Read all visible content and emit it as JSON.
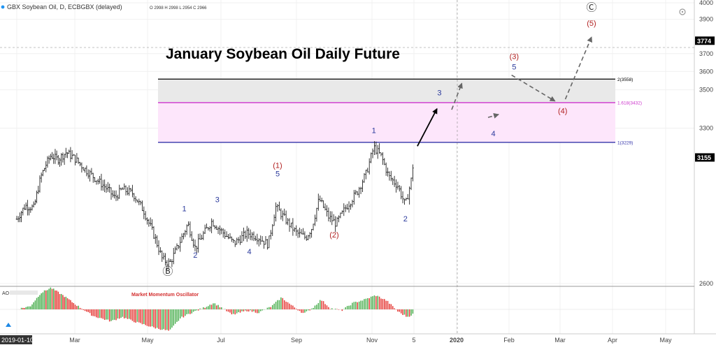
{
  "header": {
    "symbol": "GBX Soybean Oil, D, ECBGBX (delayed)",
    "ohlc": "O 2998 H 2998 L 2954 C 2966"
  },
  "colors": {
    "bar": "#222222",
    "fib_top": "#000000",
    "fib_mid": "#cc33cc",
    "fib_low": "#3333aa",
    "wave_blue": "#2b3a9c",
    "wave_red": "#b22222",
    "ao_up": "#4caf50",
    "ao_down": "#e53935",
    "current_price_bg": "#000000"
  },
  "chart_data": {
    "type": "ohlc",
    "title": "January Soybean Oil Daily Future",
    "x_ticks": [
      {
        "label": "2019-01-10",
        "month": 0.3
      },
      {
        "label": "Mar",
        "month": 2
      },
      {
        "label": "May",
        "month": 4
      },
      {
        "label": "Jul",
        "month": 6
      },
      {
        "label": "Sep",
        "month": 8
      },
      {
        "label": "Nov",
        "month": 10
      },
      {
        "label": "5",
        "month": 11.13
      },
      {
        "label": "2020",
        "month": 12
      },
      {
        "label": "Feb",
        "month": 13
      },
      {
        "label": "Mar",
        "month": 14
      },
      {
        "label": "Apr",
        "month": 15
      },
      {
        "label": "May",
        "month": 16
      }
    ],
    "y_ticks": [
      2600,
      3300,
      3500,
      3600,
      3700,
      3900,
      4000
    ],
    "y_range": [
      2540,
      4030
    ],
    "log_scale": true,
    "price_labels": [
      {
        "label": "3774",
        "value": 3774
      },
      {
        "label": "3155",
        "value": 3155
      }
    ],
    "fib_levels": [
      {
        "ratio": "2",
        "value": 3558,
        "label": "2(3558)"
      },
      {
        "ratio": "1.618",
        "value": 3432,
        "label": "1.618(3432)"
      },
      {
        "ratio": "1",
        "value": 3229,
        "label": "1(3229)"
      }
    ],
    "price_path": [
      {
        "month": 0.3,
        "price": 2870
      },
      {
        "month": 0.55,
        "price": 2930
      },
      {
        "month": 0.8,
        "price": 2920
      },
      {
        "month": 1.0,
        "price": 3060
      },
      {
        "month": 1.15,
        "price": 3120
      },
      {
        "month": 1.3,
        "price": 3165
      },
      {
        "month": 1.5,
        "price": 3145
      },
      {
        "month": 1.75,
        "price": 3180
      },
      {
        "month": 2.0,
        "price": 3150
      },
      {
        "month": 2.3,
        "price": 3095
      },
      {
        "month": 2.6,
        "price": 3050
      },
      {
        "month": 2.9,
        "price": 3005
      },
      {
        "month": 3.1,
        "price": 2965
      },
      {
        "month": 3.3,
        "price": 3005
      },
      {
        "month": 3.6,
        "price": 2985
      },
      {
        "month": 3.9,
        "price": 2905
      },
      {
        "month": 4.2,
        "price": 2790
      },
      {
        "month": 4.4,
        "price": 2700
      },
      {
        "month": 4.6,
        "price": 2680
      },
      {
        "month": 4.85,
        "price": 2760
      },
      {
        "month": 5.1,
        "price": 2850
      },
      {
        "month": 5.3,
        "price": 2745
      },
      {
        "month": 5.5,
        "price": 2800
      },
      {
        "month": 5.75,
        "price": 2860
      },
      {
        "month": 6.0,
        "price": 2820
      },
      {
        "month": 6.35,
        "price": 2765
      },
      {
        "month": 6.7,
        "price": 2810
      },
      {
        "month": 7.0,
        "price": 2790
      },
      {
        "month": 7.25,
        "price": 2760
      },
      {
        "month": 7.45,
        "price": 2925
      },
      {
        "month": 7.7,
        "price": 2870
      },
      {
        "month": 8.0,
        "price": 2810
      },
      {
        "month": 8.25,
        "price": 2790
      },
      {
        "month": 8.4,
        "price": 2830
      },
      {
        "month": 8.6,
        "price": 2960
      },
      {
        "month": 8.85,
        "price": 2880
      },
      {
        "month": 9.05,
        "price": 2850
      },
      {
        "month": 9.3,
        "price": 2920
      },
      {
        "month": 9.6,
        "price": 2990
      },
      {
        "month": 9.85,
        "price": 3080
      },
      {
        "month": 10.05,
        "price": 3205
      },
      {
        "month": 10.25,
        "price": 3160
      },
      {
        "month": 10.45,
        "price": 3065
      },
      {
        "month": 10.7,
        "price": 3020
      },
      {
        "month": 10.9,
        "price": 2930
      },
      {
        "month": 11.05,
        "price": 3040
      },
      {
        "month": 11.13,
        "price": 3155
      }
    ],
    "projections": [
      {
        "style": "solid",
        "points": [
          {
            "month": 11.2,
            "price": 3210
          },
          {
            "month": 11.6,
            "price": 3400
          }
        ]
      },
      {
        "style": "dashed",
        "points": [
          {
            "month": 11.9,
            "price": 3395
          },
          {
            "month": 12.1,
            "price": 3535
          },
          {
            "month": 12.6,
            "price": 3355
          },
          {
            "month": 12.8,
            "price": 3370
          },
          {
            "month": 13.05,
            "price": 3580
          },
          {
            "month": 13.9,
            "price": 3440
          },
          {
            "month": 14.1,
            "price": 3450
          },
          {
            "month": 14.6,
            "price": 3795
          }
        ]
      }
    ],
    "wave_labels": [
      {
        "text": "Ⓑ",
        "month": 4.55,
        "price": 2635,
        "color": "#333333"
      },
      {
        "text": "1",
        "month": 5.0,
        "price": 2905,
        "color": "#2b3a9c"
      },
      {
        "text": "2",
        "month": 5.3,
        "price": 2705,
        "color": "#2b3a9c"
      },
      {
        "text": "3",
        "month": 5.9,
        "price": 2945,
        "color": "#2b3a9c"
      },
      {
        "text": "4",
        "month": 6.75,
        "price": 2720,
        "color": "#2b3a9c"
      },
      {
        "text": "(1)",
        "month": 7.5,
        "price": 3105,
        "color": "#b22222"
      },
      {
        "text": "5",
        "month": 7.5,
        "price": 3065,
        "color": "#2b3a9c"
      },
      {
        "text": "(2)",
        "month": 9.0,
        "price": 2790,
        "color": "#b22222"
      },
      {
        "text": "1",
        "month": 10.05,
        "price": 3275,
        "color": "#2b3a9c"
      },
      {
        "text": "2",
        "month": 10.9,
        "price": 2860,
        "color": "#2b3a9c"
      },
      {
        "text": "3",
        "month": 11.65,
        "price": 3470,
        "color": "#2b3a9c"
      },
      {
        "text": "4",
        "month": 12.7,
        "price": 3260,
        "color": "#2b3a9c"
      },
      {
        "text": "(3)",
        "month": 13.1,
        "price": 3670,
        "color": "#b22222"
      },
      {
        "text": "5",
        "month": 13.1,
        "price": 3610,
        "color": "#2b3a9c"
      },
      {
        "text": "(4)",
        "month": 14.05,
        "price": 3375,
        "color": "#b22222"
      },
      {
        "text": "(5)",
        "month": 14.6,
        "price": 3860,
        "color": "#b22222"
      },
      {
        "text": "Ⓒ",
        "month": 14.6,
        "price": 3950,
        "color": "#333333"
      }
    ],
    "oscillator": {
      "name": "AO",
      "title": "Market Momentum Oscillator",
      "segments": [
        {
          "month": 0.3,
          "value": 0
        },
        {
          "month": 0.7,
          "value": 0.15
        },
        {
          "month": 1.0,
          "value": 0.75
        },
        {
          "month": 1.3,
          "value": 1.0
        },
        {
          "month": 1.7,
          "value": 0.6
        },
        {
          "month": 2.0,
          "value": 0.25
        },
        {
          "month": 2.5,
          "value": -0.3
        },
        {
          "month": 3.0,
          "value": -0.55
        },
        {
          "month": 3.3,
          "value": -0.35
        },
        {
          "month": 3.7,
          "value": -0.6
        },
        {
          "month": 4.2,
          "value": -0.85
        },
        {
          "month": 4.6,
          "value": -1.0
        },
        {
          "month": 4.9,
          "value": -0.4
        },
        {
          "month": 5.2,
          "value": -0.15
        },
        {
          "month": 5.5,
          "value": 0.05
        },
        {
          "month": 5.8,
          "value": 0.3
        },
        {
          "month": 6.0,
          "value": 0.1
        },
        {
          "month": 6.3,
          "value": -0.25
        },
        {
          "month": 6.7,
          "value": -0.05
        },
        {
          "month": 7.0,
          "value": -0.15
        },
        {
          "month": 7.35,
          "value": 0.15
        },
        {
          "month": 7.6,
          "value": 0.55
        },
        {
          "month": 7.9,
          "value": 0.15
        },
        {
          "month": 8.2,
          "value": -0.2
        },
        {
          "month": 8.45,
          "value": 0.1
        },
        {
          "month": 8.65,
          "value": 0.45
        },
        {
          "month": 8.9,
          "value": 0.05
        },
        {
          "month": 9.2,
          "value": -0.05
        },
        {
          "month": 9.5,
          "value": 0.3
        },
        {
          "month": 9.8,
          "value": 0.45
        },
        {
          "month": 10.1,
          "value": 0.65
        },
        {
          "month": 10.4,
          "value": 0.4
        },
        {
          "month": 10.7,
          "value": -0.1
        },
        {
          "month": 10.95,
          "value": -0.35
        },
        {
          "month": 11.13,
          "value": -0.2
        }
      ]
    }
  }
}
